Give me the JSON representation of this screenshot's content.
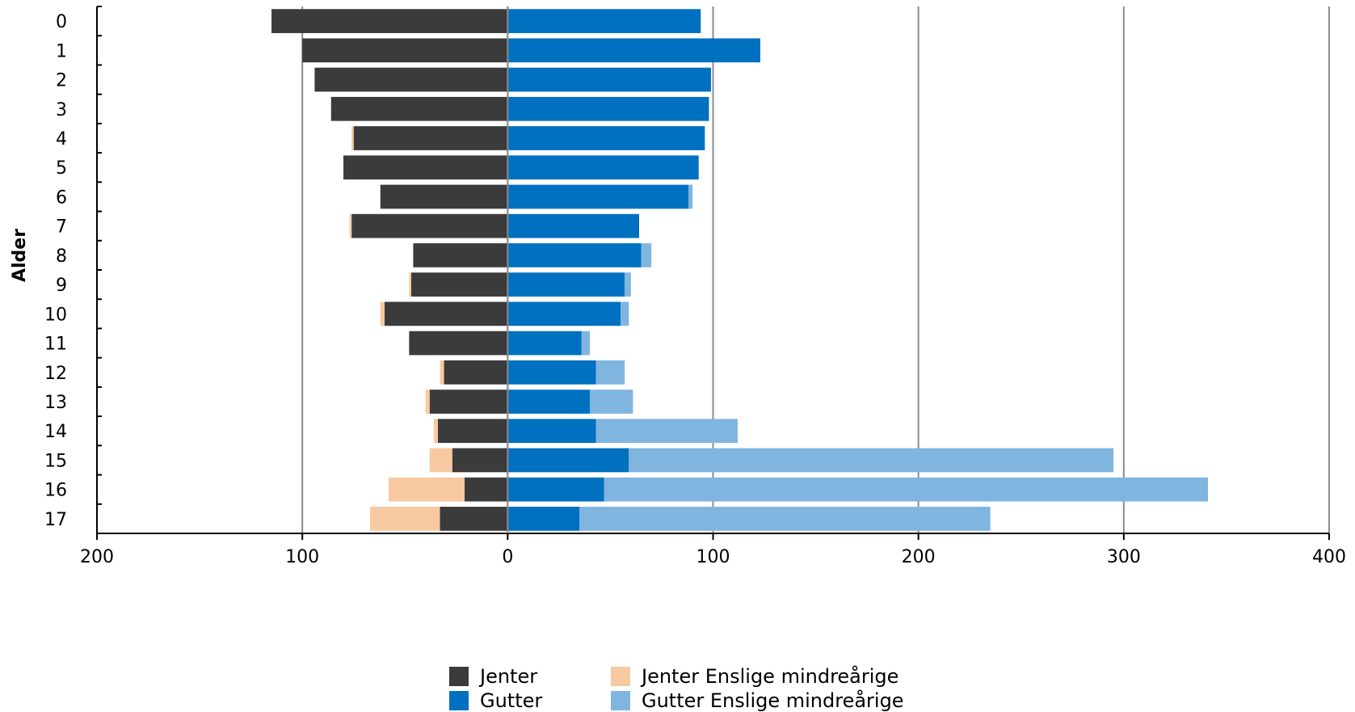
{
  "chart_data": {
    "type": "bar",
    "orientation": "horizontal",
    "stacked": true,
    "ylabel": "Alder",
    "categories": [
      "0",
      "1",
      "2",
      "3",
      "4",
      "5",
      "6",
      "7",
      "8",
      "9",
      "10",
      "11",
      "12",
      "13",
      "14",
      "15",
      "16",
      "17"
    ],
    "x_ticks": [
      {
        "value": -200,
        "label": "200"
      },
      {
        "value": -100,
        "label": "100"
      },
      {
        "value": 0,
        "label": "0"
      },
      {
        "value": 100,
        "label": "100"
      },
      {
        "value": 200,
        "label": "200"
      },
      {
        "value": 300,
        "label": "300"
      },
      {
        "value": 400,
        "label": "400"
      }
    ],
    "xlim": [
      -200,
      400
    ],
    "grid": true,
    "legend_position": "bottom-center",
    "series": [
      {
        "name": "Jenter",
        "side": "left",
        "color": "#3b3b3b",
        "values": [
          115,
          100,
          94,
          86,
          75,
          80,
          62,
          76,
          46,
          47,
          60,
          48,
          31,
          38,
          34,
          27,
          21,
          33
        ]
      },
      {
        "name": "Jenter Enslige mindreårige",
        "side": "left",
        "color": "#f8c9a0",
        "values": [
          0,
          0,
          0,
          0,
          1,
          0,
          0,
          1,
          0,
          1,
          2,
          0,
          2,
          2,
          2,
          11,
          37,
          34
        ]
      },
      {
        "name": "Gutter",
        "side": "right",
        "color": "#0070c0",
        "values": [
          94,
          123,
          99,
          98,
          96,
          93,
          88,
          64,
          65,
          57,
          55,
          36,
          43,
          40,
          43,
          59,
          47,
          35
        ]
      },
      {
        "name": "Gutter Enslige mindreårige",
        "side": "right",
        "color": "#80b5e0",
        "values": [
          0,
          0,
          0,
          0,
          0,
          0,
          2,
          0,
          5,
          3,
          4,
          4,
          14,
          21,
          69,
          236,
          294,
          200
        ]
      }
    ]
  }
}
